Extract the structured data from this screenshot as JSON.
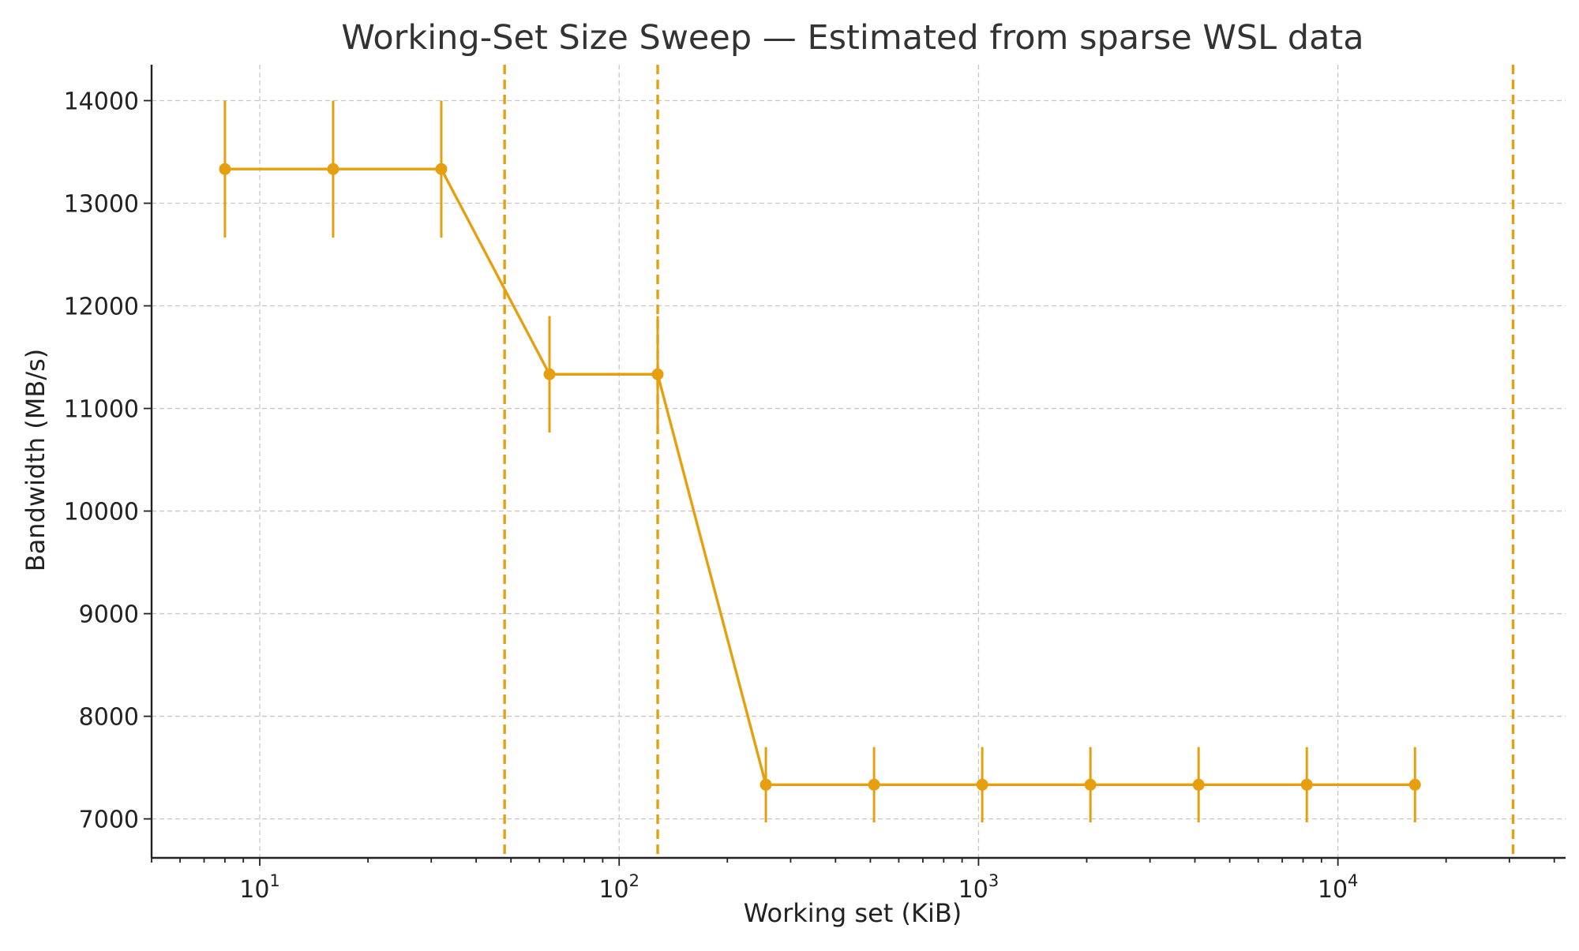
{
  "chart_data": {
    "type": "line",
    "title": "Working-Set Size Sweep — Estimated from sparse WSL data",
    "xlabel": "Working set (KiB)",
    "ylabel": "Bandwidth (MB/s)",
    "x_scale": "log",
    "xlim": [
      5,
      43000
    ],
    "ylim": [
      6620,
      14350
    ],
    "x_ticks": [
      {
        "value": 10,
        "base": "10",
        "exp": "1"
      },
      {
        "value": 100,
        "base": "10",
        "exp": "2"
      },
      {
        "value": 1000,
        "base": "10",
        "exp": "3"
      },
      {
        "value": 10000,
        "base": "10",
        "exp": "4"
      }
    ],
    "y_ticks": [
      7000,
      8000,
      9000,
      10000,
      11000,
      12000,
      13000,
      14000
    ],
    "grid": true,
    "legend": "none",
    "color": "#e6a00f",
    "series": [
      {
        "x": [
          8,
          16,
          32,
          64,
          128,
          256,
          512,
          1024,
          2048,
          4096,
          8192,
          16384
        ],
        "values": [
          13333,
          13333,
          13333,
          11333,
          11333,
          7333,
          7333,
          7333,
          7333,
          7333,
          7333,
          7333
        ],
        "error": [
          667,
          667,
          667,
          567,
          567,
          367,
          367,
          367,
          367,
          367,
          367,
          367
        ]
      }
    ],
    "vlines": [
      48,
      128,
      30720
    ]
  }
}
